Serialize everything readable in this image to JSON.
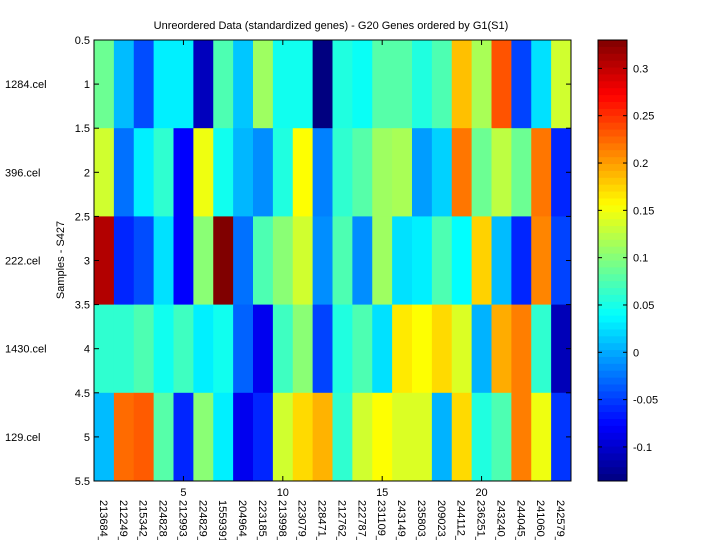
{
  "chart_data": {
    "type": "heatmap",
    "title": "Unreordered Data (standardized genes) - G20 Genes ordered by G1(S1)",
    "xlabel": "",
    "ylabel": "Samples - S427",
    "row_labels": [
      "1284.cel",
      "396.cel",
      "222.cel",
      "1430.cel",
      "129.cel"
    ],
    "column_labels": [
      "213684_",
      "212249_",
      "215342_",
      "224828_",
      "212993_",
      "224829_",
      "1559391",
      "204964_",
      "223185_",
      "213998_",
      "223079_",
      "228471_",
      "212762_",
      "222787_",
      "231109_",
      "243149_",
      "235803_",
      "209023_",
      "244112_",
      "236251_",
      "243240_",
      "244045_",
      "241060_",
      "242579_"
    ],
    "x_ticks": [
      "5",
      "10",
      "15",
      "20"
    ],
    "y_ticks": [
      "0.5",
      "1",
      "1.5",
      "2",
      "2.5",
      "3",
      "3.5",
      "4",
      "4.5",
      "5",
      "5.5"
    ],
    "xlim": [
      0.5,
      24.5
    ],
    "ylim": [
      0.5,
      5.5
    ],
    "colormap": "jet",
    "clim": [
      -0.136,
      0.33
    ],
    "colorbar_ticks": [
      "0.3",
      "0.25",
      "0.2",
      "0.15",
      "0.1",
      "0.05",
      "0",
      "-0.05",
      "-0.1"
    ],
    "values": [
      [
        0.088,
        0.008,
        -0.043,
        0.032,
        0.032,
        -0.108,
        0.074,
        0.013,
        0.111,
        0.046,
        0.046,
        -0.136,
        0.053,
        0.043,
        0.078,
        0.078,
        0.053,
        0.074,
        0.184,
        0.116,
        0.234,
        -0.047,
        0.025,
        0.134
      ],
      [
        0.134,
        -0.026,
        0.032,
        0.06,
        -0.078,
        0.148,
        0.046,
        0.006,
        -0.013,
        0.053,
        0.155,
        -0.019,
        0.06,
        0.078,
        0.111,
        0.116,
        -0.006,
        0.018,
        0.218,
        0.088,
        0.125,
        0.088,
        0.218,
        -0.061
      ],
      [
        0.307,
        -0.061,
        -0.043,
        0.025,
        -0.078,
        0.102,
        0.33,
        -0.026,
        0.074,
        0.102,
        0.134,
        -0.013,
        0.074,
        -0.013,
        0.111,
        0.025,
        0.032,
        0.074,
        0.039,
        0.176,
        0.008,
        -0.061,
        0.211,
        -0.047
      ],
      [
        0.06,
        0.06,
        0.074,
        0.046,
        0.067,
        0.032,
        0.046,
        -0.033,
        -0.085,
        0.067,
        0.102,
        -0.047,
        0.053,
        0.074,
        0.025,
        0.165,
        0.155,
        0.172,
        0.139,
        0.004,
        0.193,
        0.214,
        0.06,
        -0.11
      ],
      [
        0.008,
        0.223,
        0.23,
        0.078,
        -0.061,
        0.102,
        0.032,
        -0.085,
        -0.061,
        0.134,
        0.172,
        0.19,
        0.06,
        0.134,
        0.155,
        0.139,
        0.139,
        0.004,
        0.172,
        0.053,
        0.074,
        0.214,
        0.148,
        -0.054
      ]
    ]
  }
}
